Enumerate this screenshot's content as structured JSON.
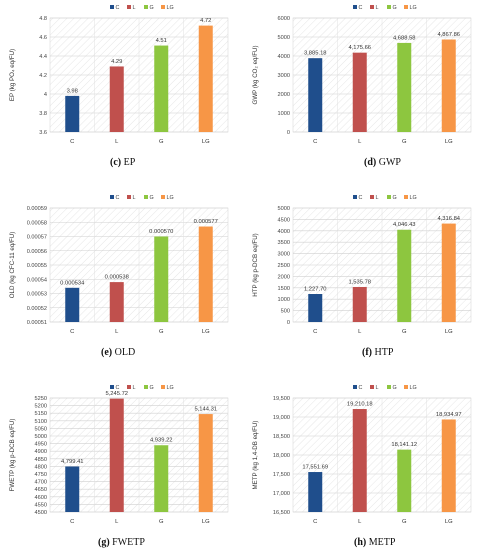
{
  "legend_labels": [
    "C",
    "L",
    "G",
    "LG"
  ],
  "colors": [
    "#1f4e8c",
    "#c0504d",
    "#8dc63f",
    "#f79646"
  ],
  "chart_data": [
    {
      "type": "bar",
      "caption_letter": "(c)",
      "caption_name": "EP",
      "ylabel": "EP (kg PO₄ eq/FU)",
      "categories": [
        "C",
        "L",
        "G",
        "LG"
      ],
      "values": [
        3.98,
        4.29,
        4.51,
        4.72
      ],
      "value_labels": [
        "3.98",
        "4.29",
        "4.51",
        "4.72"
      ],
      "ylim": [
        3.6,
        4.8
      ],
      "yticks": [
        "3.6",
        "3.8",
        "4",
        "4.2",
        "4.4",
        "4.6",
        "4.8"
      ],
      "legend_position": "top-center",
      "grid": true
    },
    {
      "type": "bar",
      "caption_letter": "(d)",
      "caption_name": "GWP",
      "ylabel": "GWP (kg CO₂ eq/FU)",
      "categories": [
        "C",
        "L",
        "G",
        "LG"
      ],
      "values": [
        3885.18,
        4175.66,
        4688.58,
        4867.86
      ],
      "value_labels": [
        "3,885.18",
        "4,175.66",
        "4,688.58",
        "4,867.86"
      ],
      "ylim": [
        0,
        6000
      ],
      "yticks": [
        "0",
        "1000",
        "2000",
        "3000",
        "4000",
        "5000",
        "6000"
      ],
      "legend_position": "top-center",
      "grid": true
    },
    {
      "type": "bar",
      "caption_letter": "(e)",
      "caption_name": "OLD",
      "ylabel": "OLD (kg CFC-11 eq/FU)",
      "categories": [
        "C",
        "L",
        "G",
        "LG"
      ],
      "values": [
        0.000534,
        0.000538,
        0.00057,
        0.000577
      ],
      "value_labels": [
        "0.000534",
        "0.000538",
        "0.000570",
        "0.000577"
      ],
      "ylim": [
        0.00051,
        0.00059
      ],
      "yticks": [
        "0.00051",
        "0.00052",
        "0.00053",
        "0.00054",
        "0.00055",
        "0.00056",
        "0.00057",
        "0.00058",
        "0.00059"
      ],
      "legend_position": "top-center",
      "grid": true
    },
    {
      "type": "bar",
      "caption_letter": "(f)",
      "caption_name": "HTP",
      "ylabel": "HTP (kg p-DCB eq/FU)",
      "categories": [
        "C",
        "L",
        "G",
        "LG"
      ],
      "values": [
        1227.7,
        1535.78,
        4046.43,
        4316.84
      ],
      "value_labels": [
        "1,227.70",
        "1,535.78",
        "4,046.43",
        "4,316.84"
      ],
      "ylim": [
        0,
        5000
      ],
      "yticks": [
        "0",
        "500",
        "1000",
        "1500",
        "2000",
        "2500",
        "3000",
        "3500",
        "4000",
        "4500",
        "5000"
      ],
      "legend_position": "top-center",
      "grid": true
    },
    {
      "type": "bar",
      "caption_letter": "(g)",
      "caption_name": "FWETP",
      "ylabel": "FWETP (kg p-DCB eq/FU)",
      "categories": [
        "C",
        "L",
        "G",
        "LG"
      ],
      "values": [
        4799.41,
        5245.72,
        4939.22,
        5144.31
      ],
      "value_labels": [
        "4,799.41",
        "5,245.72",
        "4,939.22",
        "5,144.31"
      ],
      "ylim": [
        4500,
        5250
      ],
      "yticks": [
        "4500",
        "4550",
        "4600",
        "4650",
        "4700",
        "4750",
        "4800",
        "4850",
        "4900",
        "4950",
        "5000",
        "5050",
        "5100",
        "5150",
        "5200",
        "5250"
      ],
      "legend_position": "top-center",
      "grid": true
    },
    {
      "type": "bar",
      "caption_letter": "(h)",
      "caption_name": "METP",
      "ylabel": "METP (kg 1,4-DB eq/FU)",
      "categories": [
        "C",
        "L",
        "G",
        "LG"
      ],
      "values": [
        17551.69,
        19210.18,
        18141.12,
        18934.97
      ],
      "value_labels": [
        "17,551.69",
        "19,210.18",
        "18,141.12",
        "18,934.97"
      ],
      "ylim": [
        16500,
        19500
      ],
      "yticks": [
        "16,500",
        "17,000",
        "17,500",
        "18,000",
        "18,500",
        "19,000",
        "19,500"
      ],
      "legend_position": "top-center",
      "grid": true
    }
  ]
}
